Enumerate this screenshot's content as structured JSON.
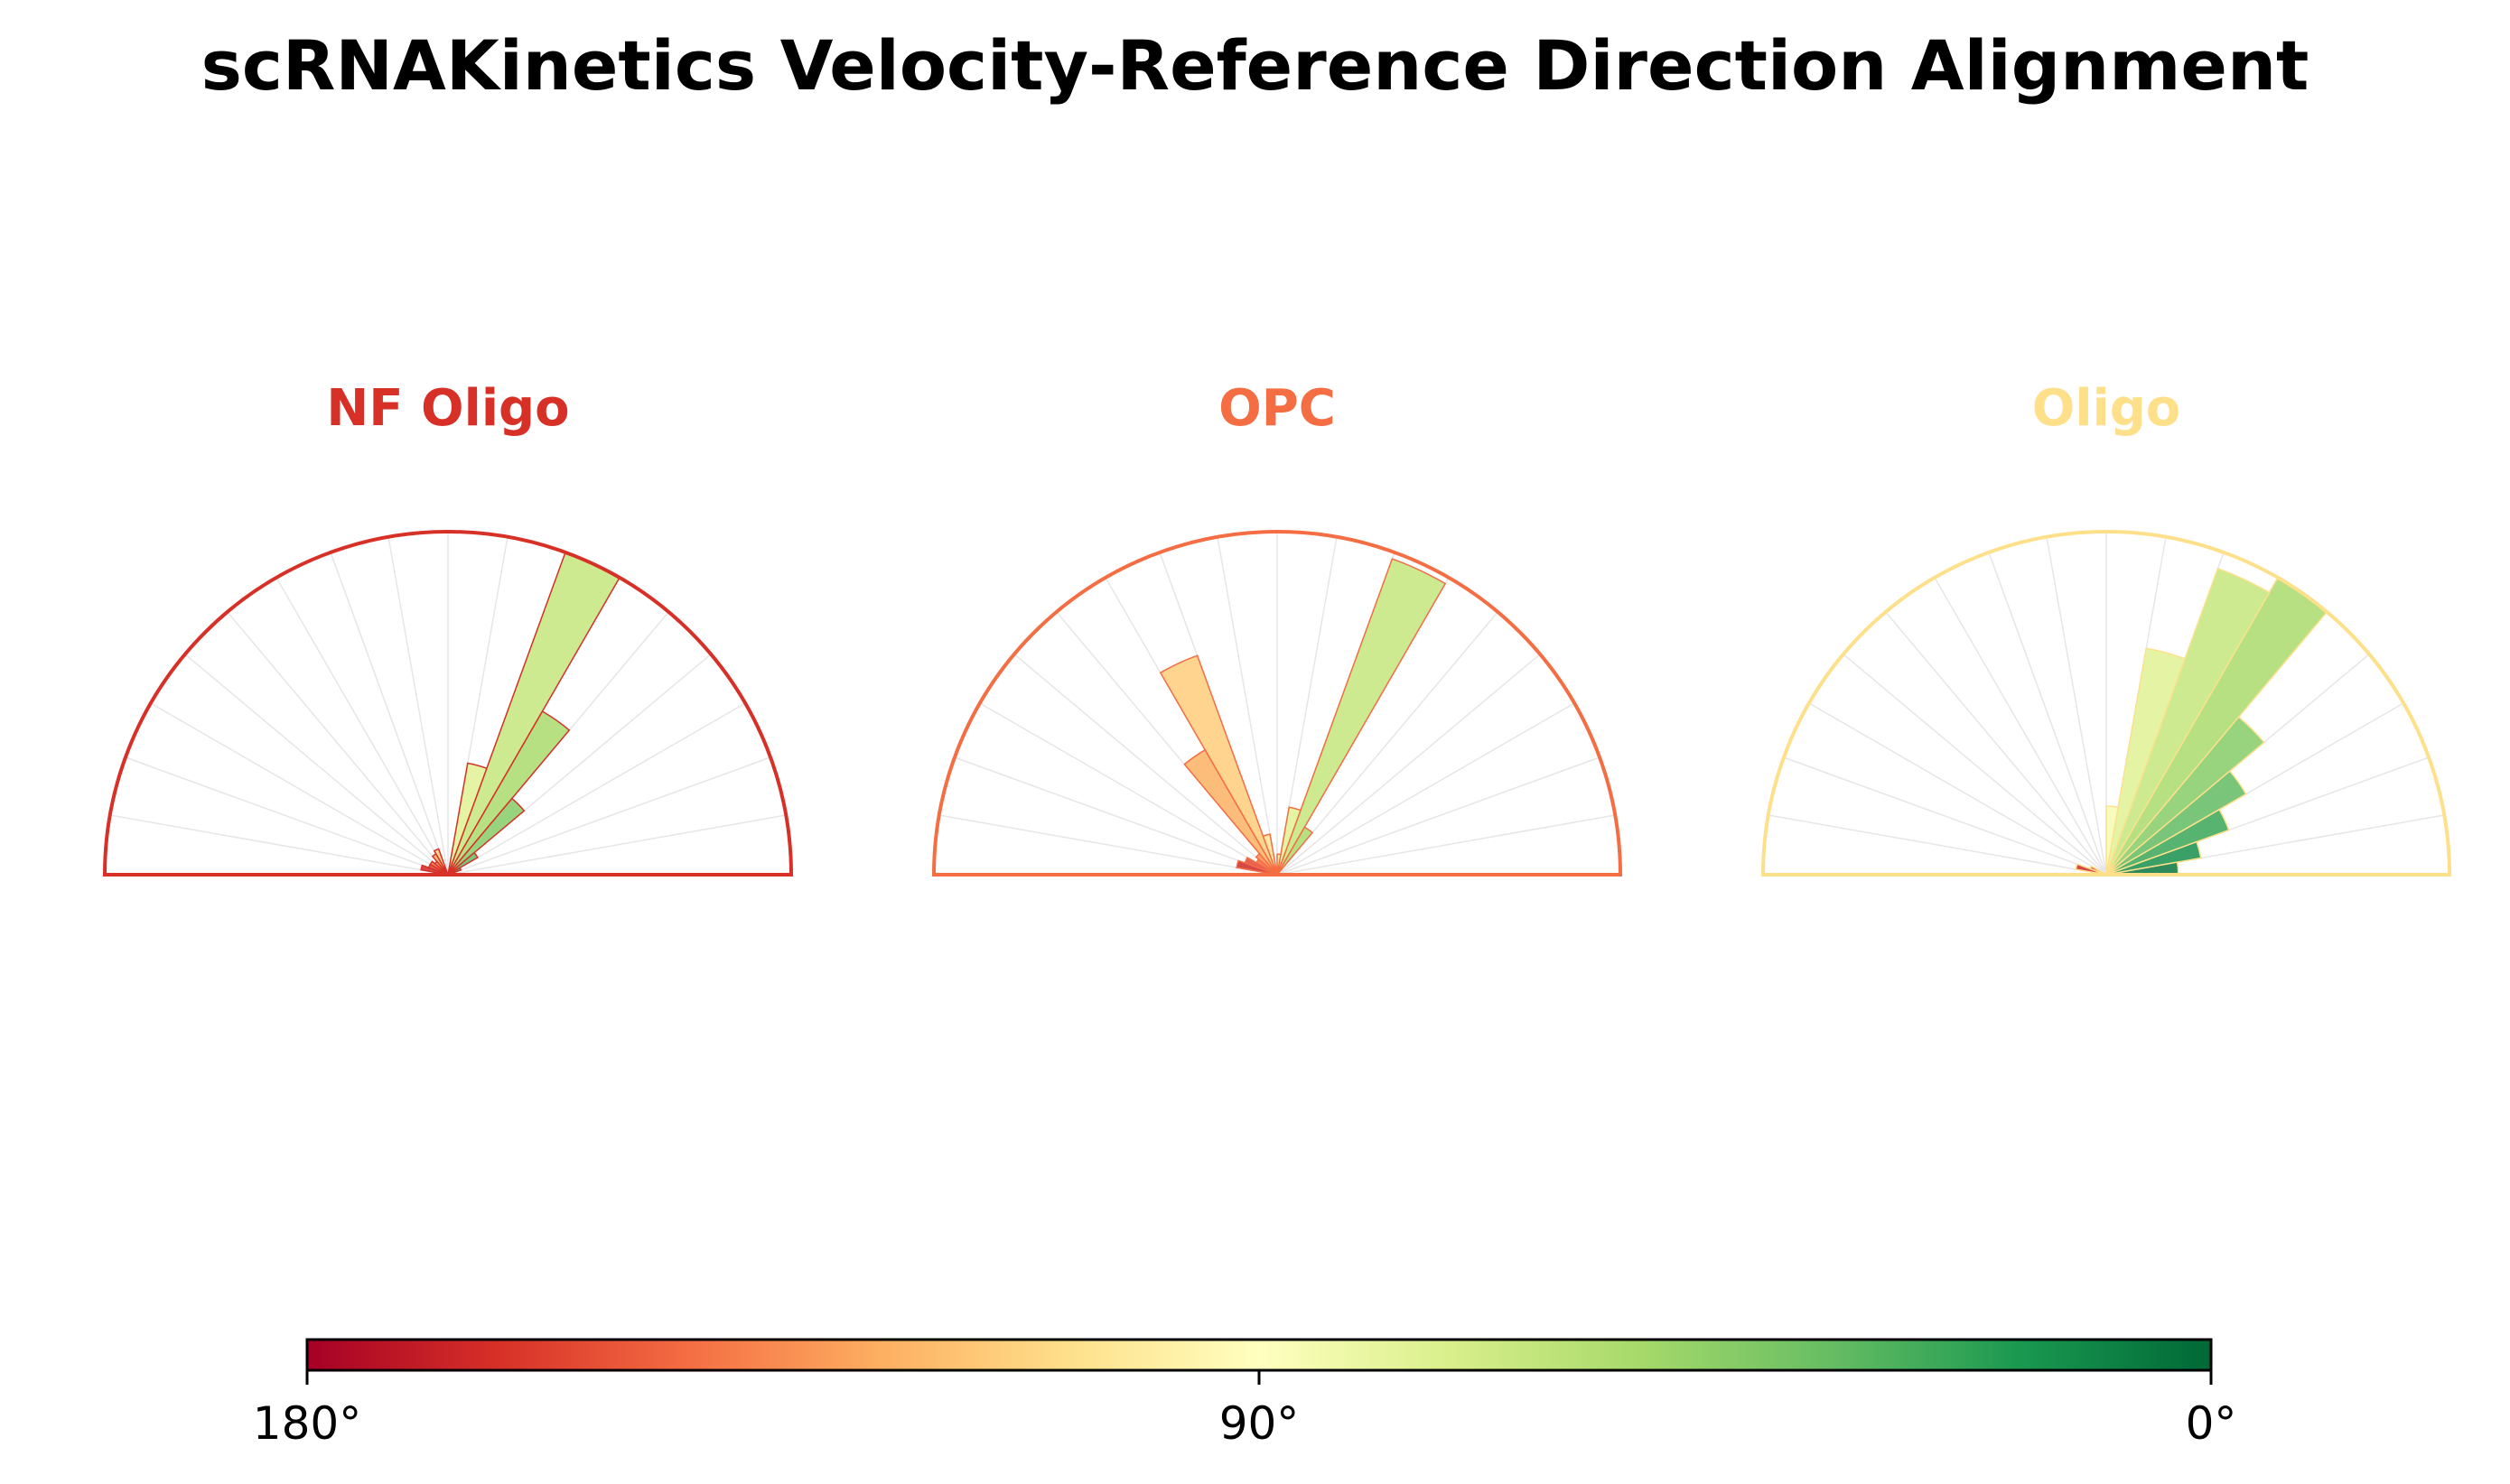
{
  "title": "scRNAKinetics Velocity-Reference Direction Alignment",
  "colormap": "RdYlGn",
  "colorbar": {
    "ticks": [
      {
        "value": 180,
        "label": "180°"
      },
      {
        "value": 90,
        "label": "90°"
      },
      {
        "value": 0,
        "label": "0°"
      }
    ],
    "range": [
      180,
      0
    ]
  },
  "chart_data": {
    "type": "polar-histogram",
    "bin_width_deg": 10,
    "r_max": 1.0,
    "panels": [
      {
        "name": "NF Oligo",
        "color": "#d73027",
        "bins": [
          {
            "center": 65,
            "value": 1.0
          },
          {
            "center": 55,
            "value": 0.55
          },
          {
            "center": 75,
            "value": 0.33
          },
          {
            "center": 45,
            "value": 0.29
          },
          {
            "center": 35,
            "value": 0.1
          },
          {
            "center": 25,
            "value": 0.04
          },
          {
            "center": 115,
            "value": 0.08
          },
          {
            "center": 125,
            "value": 0.07
          },
          {
            "center": 135,
            "value": 0.05
          },
          {
            "center": 145,
            "value": 0.06
          },
          {
            "center": 155,
            "value": 0.06
          },
          {
            "center": 165,
            "value": 0.08
          },
          {
            "center": 175,
            "value": 0.03
          }
        ]
      },
      {
        "name": "OPC",
        "color": "#f46d43",
        "bins": [
          {
            "center": 65,
            "value": 0.98
          },
          {
            "center": 75,
            "value": 0.2
          },
          {
            "center": 55,
            "value": 0.16
          },
          {
            "center": 85,
            "value": 0.06
          },
          {
            "center": 115,
            "value": 0.68
          },
          {
            "center": 125,
            "value": 0.42
          },
          {
            "center": 105,
            "value": 0.12
          },
          {
            "center": 135,
            "value": 0.08
          },
          {
            "center": 145,
            "value": 0.07
          },
          {
            "center": 155,
            "value": 0.1
          },
          {
            "center": 165,
            "value": 0.12
          },
          {
            "center": 175,
            "value": 0.04
          }
        ]
      },
      {
        "name": "Oligo",
        "color": "#fee08b",
        "bins": [
          {
            "center": 55,
            "value": 1.0
          },
          {
            "center": 65,
            "value": 0.95
          },
          {
            "center": 75,
            "value": 0.67
          },
          {
            "center": 85,
            "value": 0.2
          },
          {
            "center": 45,
            "value": 0.6
          },
          {
            "center": 35,
            "value": 0.47
          },
          {
            "center": 25,
            "value": 0.38
          },
          {
            "center": 15,
            "value": 0.28
          },
          {
            "center": 5,
            "value": 0.21
          },
          {
            "center": 155,
            "value": 0.05
          },
          {
            "center": 165,
            "value": 0.09
          },
          {
            "center": 175,
            "value": 0.03
          }
        ]
      }
    ]
  }
}
